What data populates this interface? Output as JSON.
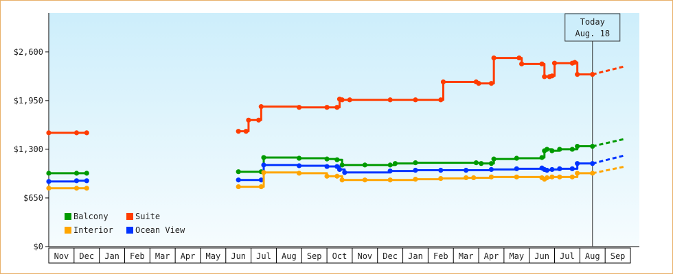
{
  "chart_data": {
    "type": "line",
    "title": "",
    "xlabel": "",
    "ylabel": "",
    "ylim": [
      0,
      3120
    ],
    "y_ticks": [
      {
        "value": 0,
        "label": "$0"
      },
      {
        "value": 650,
        "label": "$650"
      },
      {
        "value": 1300,
        "label": "$1,300"
      },
      {
        "value": 1950,
        "label": "$1,950"
      },
      {
        "value": 2600,
        "label": "$2,600"
      }
    ],
    "x_range": [
      0,
      23
    ],
    "x_ticks": [
      {
        "value": 0.5,
        "label": "Nov"
      },
      {
        "value": 1.5,
        "label": "Dec"
      },
      {
        "value": 2.5,
        "label": "Jan"
      },
      {
        "value": 3.5,
        "label": "Feb"
      },
      {
        "value": 4.5,
        "label": "Mar"
      },
      {
        "value": 5.5,
        "label": "Apr"
      },
      {
        "value": 6.5,
        "label": "May"
      },
      {
        "value": 7.5,
        "label": "Jun"
      },
      {
        "value": 8.5,
        "label": "Jul"
      },
      {
        "value": 9.5,
        "label": "Aug"
      },
      {
        "value": 10.5,
        "label": "Sep"
      },
      {
        "value": 11.5,
        "label": "Oct"
      },
      {
        "value": 12.5,
        "label": "Nov"
      },
      {
        "value": 13.5,
        "label": "Dec"
      },
      {
        "value": 14.5,
        "label": "Jan"
      },
      {
        "value": 15.5,
        "label": "Feb"
      },
      {
        "value": 16.5,
        "label": "Mar"
      },
      {
        "value": 17.5,
        "label": "Apr"
      },
      {
        "value": 18.5,
        "label": "May"
      },
      {
        "value": 19.5,
        "label": "Jun"
      },
      {
        "value": 20.5,
        "label": "Jul"
      },
      {
        "value": 21.5,
        "label": "Aug"
      },
      {
        "value": 22.5,
        "label": "Sep"
      }
    ],
    "today": {
      "x": 21.5,
      "line1": "Today",
      "line2": "Aug. 18"
    },
    "legend": {
      "placement": "bottom-left"
    },
    "grid": false,
    "series": [
      {
        "name": "Suite",
        "color": "#ff3c00",
        "segments": [
          [
            [
              0,
              1520
            ],
            [
              1.1,
              1520
            ],
            [
              1.5,
              1520
            ]
          ],
          [
            [
              7.5,
              1540
            ],
            [
              7.8,
              1540
            ],
            [
              7.9,
              1690
            ],
            [
              8.3,
              1690
            ],
            [
              8.4,
              1870
            ],
            [
              9.9,
              1860
            ],
            [
              11.0,
              1860
            ],
            [
              11.4,
              1860
            ],
            [
              11.5,
              1970
            ],
            [
              11.6,
              1960
            ],
            [
              11.9,
              1960
            ],
            [
              13.5,
              1960
            ],
            [
              14.5,
              1960
            ],
            [
              15.5,
              1960
            ],
            [
              15.6,
              2200
            ],
            [
              16.9,
              2200
            ],
            [
              17.0,
              2180
            ],
            [
              17.5,
              2180
            ],
            [
              17.6,
              2520
            ],
            [
              18.6,
              2520
            ],
            [
              18.7,
              2440
            ],
            [
              19.5,
              2440
            ],
            [
              19.6,
              2270
            ],
            [
              19.8,
              2270
            ],
            [
              19.9,
              2280
            ],
            [
              20.0,
              2450
            ],
            [
              20.7,
              2450
            ],
            [
              20.8,
              2460
            ],
            [
              20.9,
              2300
            ],
            [
              21.5,
              2300
            ]
          ]
        ],
        "projection": [
          [
            21.5,
            2300
          ],
          [
            22.8,
            2410
          ]
        ]
      },
      {
        "name": "Balcony",
        "color": "#009a00",
        "segments": [
          [
            [
              0,
              980
            ],
            [
              1.1,
              980
            ],
            [
              1.5,
              980
            ]
          ],
          [
            [
              7.5,
              1000
            ],
            [
              8.4,
              1000
            ],
            [
              8.5,
              1190
            ],
            [
              9.9,
              1180
            ],
            [
              11.0,
              1170
            ],
            [
              11.4,
              1160
            ],
            [
              11.6,
              1090
            ],
            [
              12.5,
              1090
            ],
            [
              13.5,
              1090
            ],
            [
              13.7,
              1110
            ],
            [
              14.5,
              1120
            ],
            [
              16.9,
              1120
            ],
            [
              17.1,
              1110
            ],
            [
              17.5,
              1110
            ],
            [
              17.6,
              1170
            ],
            [
              18.5,
              1180
            ],
            [
              19.5,
              1190
            ],
            [
              19.6,
              1280
            ],
            [
              19.7,
              1300
            ],
            [
              19.9,
              1280
            ],
            [
              20.2,
              1300
            ],
            [
              20.7,
              1300
            ],
            [
              20.9,
              1340
            ],
            [
              21.5,
              1340
            ]
          ]
        ],
        "projection": [
          [
            21.5,
            1340
          ],
          [
            22.8,
            1440
          ]
        ]
      },
      {
        "name": "Ocean View",
        "color": "#0033ff",
        "segments": [
          [
            [
              0,
              870
            ],
            [
              1.1,
              880
            ],
            [
              1.5,
              880
            ]
          ],
          [
            [
              7.5,
              890
            ],
            [
              8.4,
              890
            ],
            [
              8.5,
              1090
            ],
            [
              9.9,
              1080
            ],
            [
              11.0,
              1070
            ],
            [
              11.4,
              1070
            ],
            [
              11.5,
              1030
            ],
            [
              11.7,
              990
            ],
            [
              13.5,
              1010
            ],
            [
              14.5,
              1020
            ],
            [
              15.5,
              1020
            ],
            [
              16.5,
              1020
            ],
            [
              17.5,
              1030
            ],
            [
              18.5,
              1040
            ],
            [
              19.5,
              1050
            ],
            [
              19.6,
              1030
            ],
            [
              19.7,
              1020
            ],
            [
              19.9,
              1030
            ],
            [
              20.2,
              1040
            ],
            [
              20.7,
              1040
            ],
            [
              20.9,
              1110
            ],
            [
              21.5,
              1110
            ]
          ]
        ],
        "projection": [
          [
            21.5,
            1110
          ],
          [
            22.8,
            1220
          ]
        ]
      },
      {
        "name": "Interior",
        "color": "#ffa500",
        "segments": [
          [
            [
              0,
              780
            ],
            [
              1.1,
              780
            ],
            [
              1.5,
              780
            ]
          ],
          [
            [
              7.5,
              800
            ],
            [
              8.4,
              800
            ],
            [
              8.5,
              990
            ],
            [
              9.9,
              980
            ],
            [
              11.0,
              940
            ],
            [
              11.4,
              940
            ],
            [
              11.6,
              890
            ],
            [
              12.5,
              890
            ],
            [
              13.5,
              890
            ],
            [
              14.5,
              900
            ],
            [
              15.5,
              910
            ],
            [
              16.5,
              920
            ],
            [
              16.8,
              920
            ],
            [
              17.5,
              930
            ],
            [
              18.5,
              930
            ],
            [
              19.5,
              920
            ],
            [
              19.6,
              900
            ],
            [
              19.7,
              920
            ],
            [
              19.9,
              930
            ],
            [
              20.2,
              930
            ],
            [
              20.7,
              930
            ],
            [
              20.9,
              980
            ],
            [
              21.5,
              980
            ]
          ]
        ],
        "projection": [
          [
            21.5,
            980
          ],
          [
            22.8,
            1070
          ]
        ]
      }
    ]
  }
}
